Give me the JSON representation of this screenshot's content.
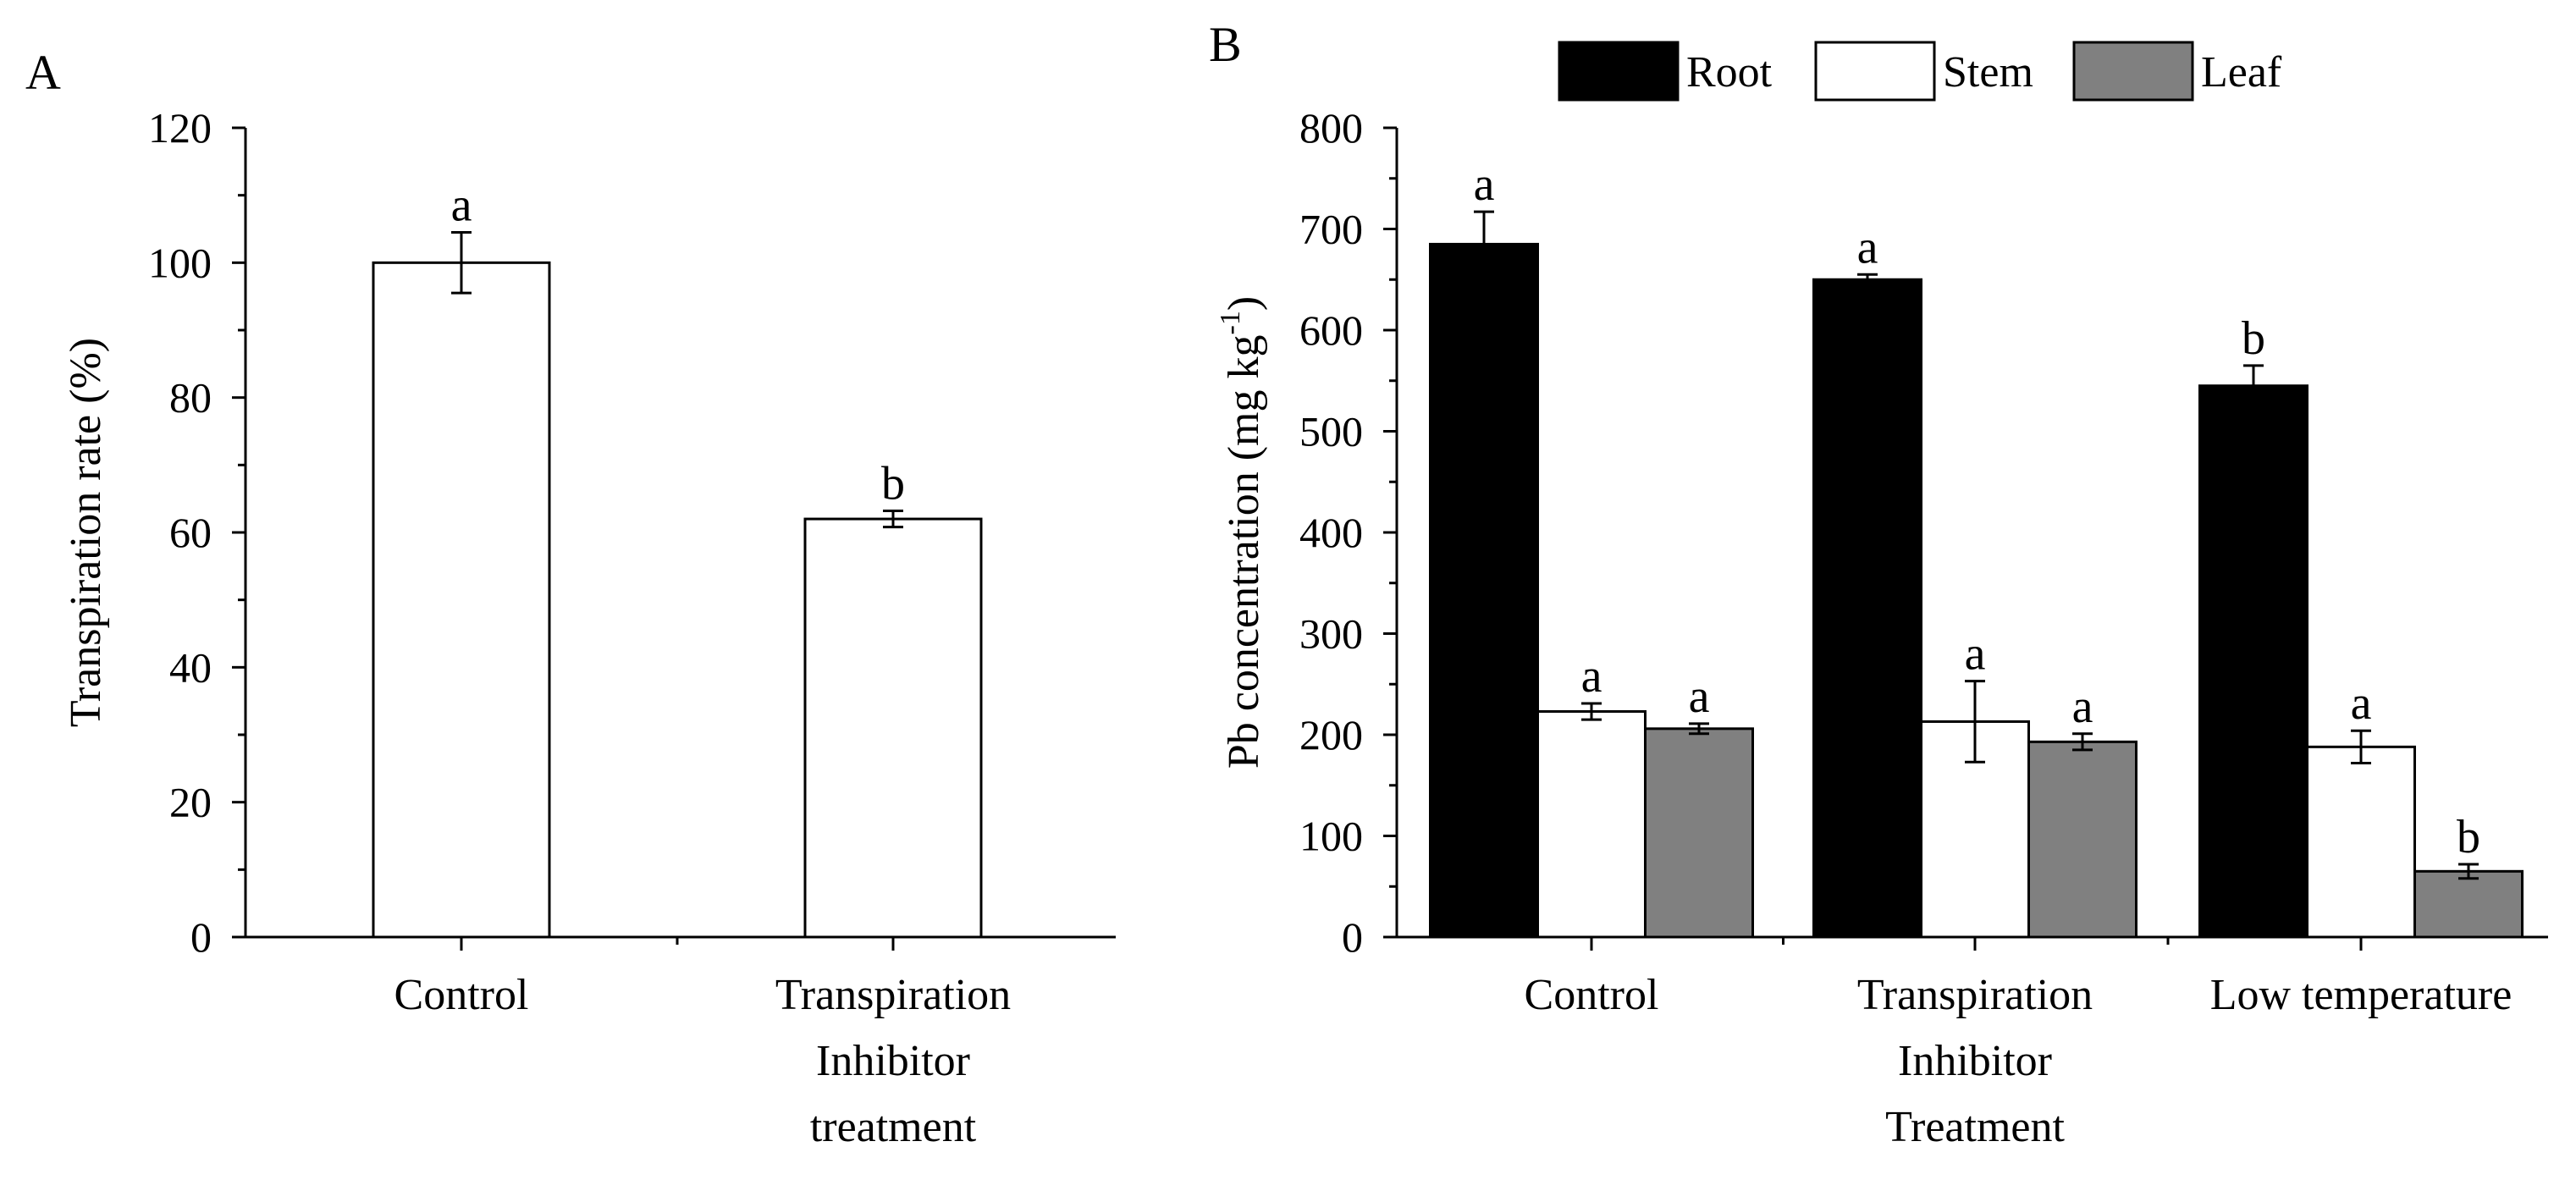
{
  "chart_data": [
    {
      "panel": "A",
      "type": "bar",
      "title": "",
      "xlabel": "",
      "ylabel": "Transpiration rate (%)",
      "ylim": [
        0,
        120
      ],
      "yticks": [
        0,
        20,
        40,
        60,
        80,
        100,
        120
      ],
      "categories": [
        [
          "Control"
        ],
        [
          "Transpiration",
          "Inhibitor",
          "treatment"
        ]
      ],
      "series": [
        {
          "name": "Transpiration rate",
          "color": "#ffffff",
          "values": [
            100,
            62
          ],
          "errors": [
            4.5,
            1.2
          ],
          "letters": [
            "a",
            "b"
          ]
        }
      ],
      "grid": false
    },
    {
      "panel": "B",
      "type": "bar",
      "title": "",
      "xlabel": "",
      "ylabel": "Pb concentration (mg kg",
      "ylabel_sup": "-1",
      "ylabel_end": ")",
      "ylim": [
        0,
        800
      ],
      "yticks": [
        0,
        100,
        200,
        300,
        400,
        500,
        600,
        700,
        800
      ],
      "categories": [
        [
          "Control"
        ],
        [
          "Transpiration",
          "Inhibitor",
          "Treatment"
        ],
        [
          "Low temperature"
        ]
      ],
      "series": [
        {
          "name": "Root",
          "color": "#000000",
          "values": [
            685,
            650,
            545
          ],
          "errors": [
            32,
            5,
            20
          ],
          "letters": [
            "a",
            "a",
            "b"
          ]
        },
        {
          "name": "Stem",
          "color": "#ffffff",
          "values": [
            223,
            213,
            188
          ],
          "errors": [
            8,
            40,
            16
          ],
          "letters": [
            "a",
            "a",
            "a"
          ]
        },
        {
          "name": "Leaf",
          "color": "#808080",
          "values": [
            206,
            193,
            65
          ],
          "errors": [
            5,
            8,
            7
          ],
          "letters": [
            "a",
            "a",
            "b"
          ]
        }
      ],
      "legend": "top",
      "grid": false
    }
  ]
}
